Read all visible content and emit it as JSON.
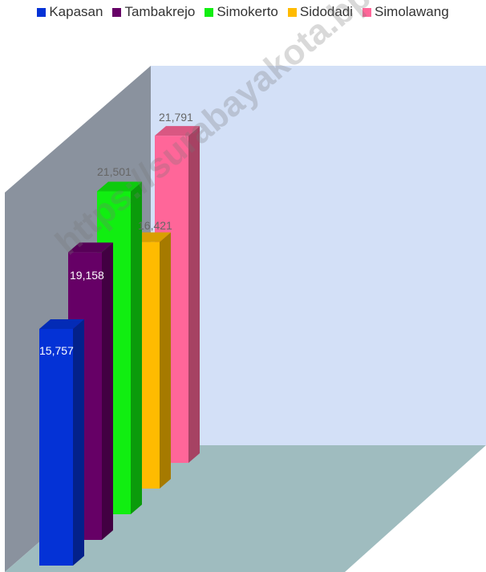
{
  "chart_data": {
    "type": "bar",
    "style": "3d-clustered-column",
    "categories": [
      "Kapasan",
      "Tambakrejo",
      "Simokerto",
      "Sidodadi",
      "Simolawang"
    ],
    "values": [
      15757,
      19158,
      21501,
      16421,
      21791
    ],
    "data_labels": [
      "15,757",
      "19,158",
      "21,501",
      "16,421",
      "21,791"
    ],
    "colors": [
      "#0432d6",
      "#660066",
      "#11ee11",
      "#ffbb00",
      "#ff6699"
    ],
    "title": "",
    "xlabel": "",
    "ylabel": "",
    "legend_position": "top",
    "grid": false
  },
  "watermark": "https://surabayakota.bps.go.id"
}
